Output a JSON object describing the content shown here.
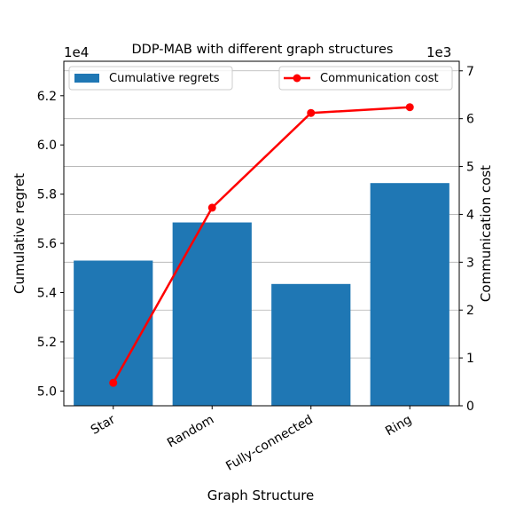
{
  "chart_data": {
    "type": "bar",
    "title": "DDP-MAB with different graph structures",
    "xlabel": "Graph Structure",
    "categories": [
      "Star",
      "Random",
      "Fully-connected",
      "Ring"
    ],
    "y_left": {
      "label": "Cumulative regret",
      "exponent_label": "1e4",
      "lim": [
        4.94,
        6.34
      ],
      "ticks": [
        5.0,
        5.2,
        5.4,
        5.6,
        5.8,
        6.0,
        6.2
      ],
      "tick_labels": [
        "5.0",
        "5.2",
        "5.4",
        "5.6",
        "5.8",
        "6.0",
        "6.2"
      ]
    },
    "y_right": {
      "label": "Communication cost",
      "exponent_label": "1e3",
      "lim": [
        0,
        7.2
      ],
      "ticks": [
        0,
        1,
        2,
        3,
        4,
        5,
        6,
        7
      ],
      "tick_labels": [
        "0",
        "1",
        "2",
        "3",
        "4",
        "5",
        "6",
        "7"
      ]
    },
    "grid": "horizontal, right axis",
    "series": [
      {
        "name": "Cumulative regrets",
        "type": "bar",
        "axis": "left",
        "color": "#1f77b4",
        "values": [
          5.53,
          5.685,
          5.435,
          5.845
        ]
      },
      {
        "name": "Communication cost",
        "type": "line",
        "axis": "right",
        "color": "#ff0000",
        "marker": "circle",
        "values": [
          0.48,
          4.14,
          6.12,
          6.24
        ]
      }
    ],
    "legends": [
      {
        "series": "Cumulative regrets",
        "placement": "upper-left"
      },
      {
        "series": "Communication cost",
        "placement": "upper-right"
      }
    ]
  }
}
